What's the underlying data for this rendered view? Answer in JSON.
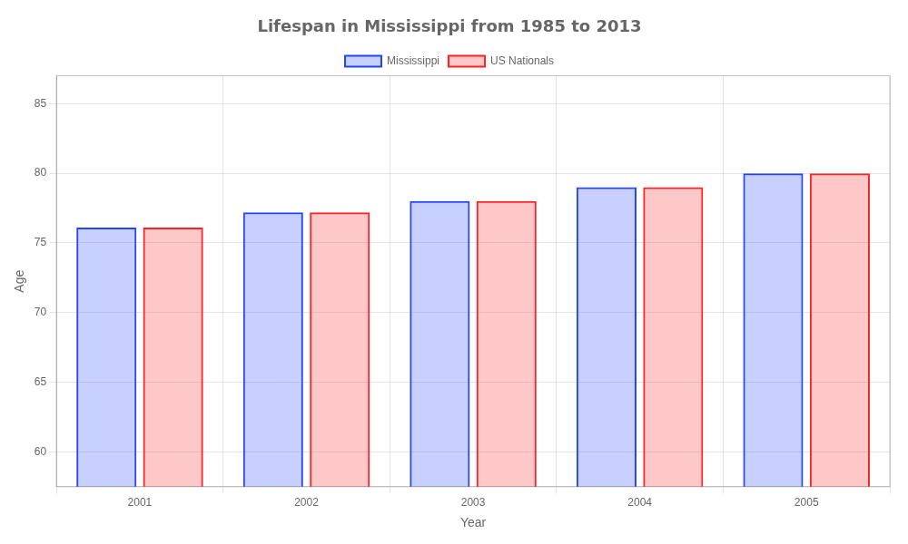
{
  "chart_data": {
    "type": "bar",
    "title": "Lifespan in Mississippi from 1985 to 2013",
    "x_label": "Year",
    "y_label": "Age",
    "categories": [
      "2001",
      "2002",
      "2003",
      "2004",
      "2005"
    ],
    "series": [
      {
        "name": "Mississippi",
        "color": "#2244ff",
        "values": [
          76.1,
          77.2,
          78.0,
          79.0,
          80.0
        ]
      },
      {
        "name": "US Nationals",
        "color": "#ff2222",
        "values": [
          76.1,
          77.2,
          78.0,
          79.0,
          80.0
        ]
      }
    ],
    "ylim": [
      57.5,
      87
    ],
    "yticks": [
      60,
      65,
      70,
      75,
      80,
      85
    ],
    "grid": true,
    "legend": "top"
  }
}
